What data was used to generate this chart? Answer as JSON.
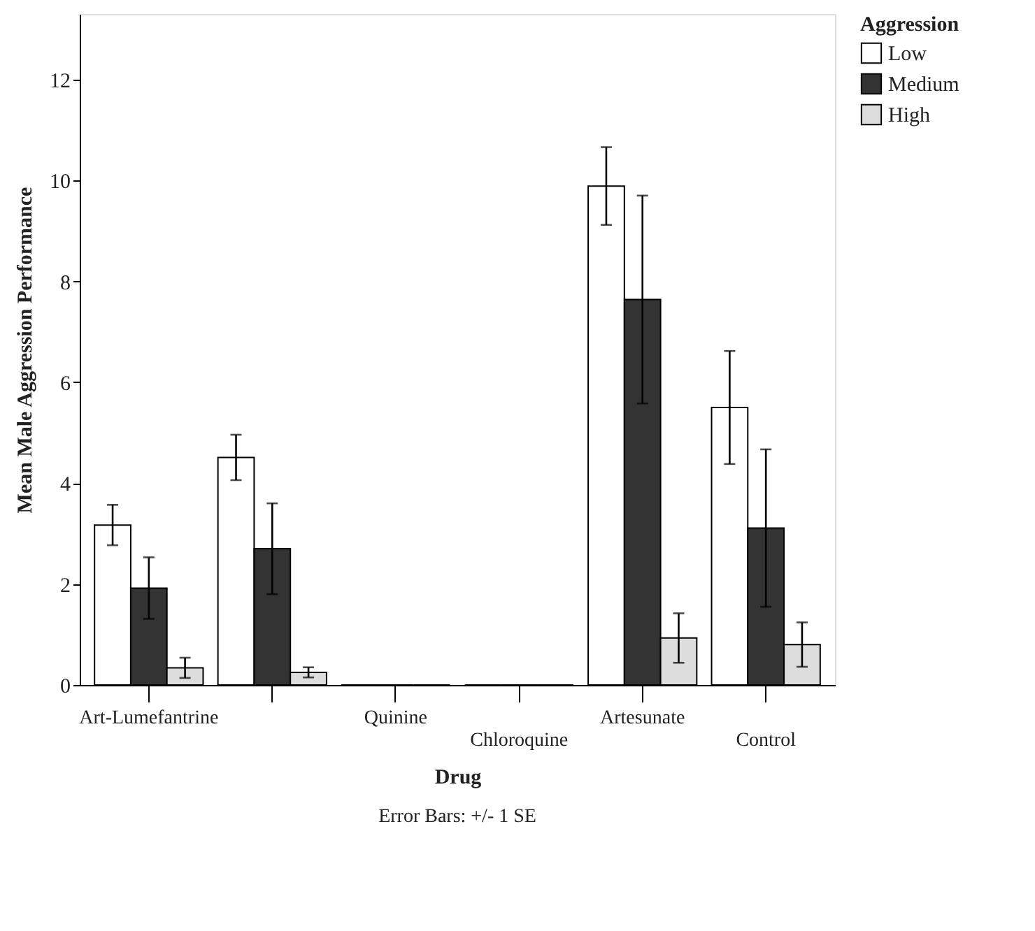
{
  "chart_data": {
    "type": "bar",
    "xlabel": "Drug",
    "ylabel": "Mean Male Aggression Performance",
    "legend_title": "Aggression",
    "categories": [
      "Art-Lumefantrine",
      null,
      "Quinine",
      "Chloroquine",
      "Artesunate",
      "Control"
    ],
    "series": [
      {
        "name": "Low",
        "color": "#ffffff",
        "values": [
          3.17,
          4.51,
          0,
          0,
          9.89,
          5.5
        ],
        "errors": [
          0.4,
          0.45,
          null,
          null,
          0.77,
          1.12
        ]
      },
      {
        "name": "Medium",
        "color": "#333333",
        "values": [
          1.92,
          2.7,
          0,
          0,
          7.64,
          3.11
        ],
        "errors": [
          0.61,
          0.9,
          null,
          null,
          2.06,
          1.56
        ]
      },
      {
        "name": "High",
        "color": "#dddddd",
        "values": [
          0.34,
          0.25,
          0,
          0,
          0.93,
          0.8
        ],
        "errors": [
          0.2,
          0.1,
          null,
          null,
          0.49,
          0.44
        ]
      }
    ],
    "ylim": [
      0,
      13.3
    ],
    "yticks": [
      0,
      2,
      4,
      6,
      8,
      10,
      12
    ],
    "grid": false,
    "legend": "top right",
    "annotations": [
      "Error Bars: +/- 1 SE"
    ]
  }
}
